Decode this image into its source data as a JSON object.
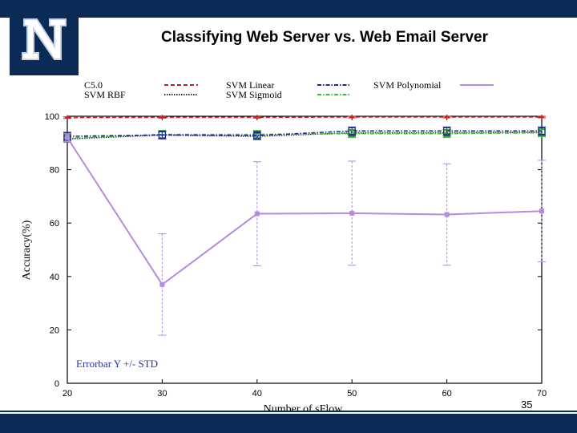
{
  "slide": {
    "title": "Classifying Web Server vs. Web Email Server",
    "page_number": "35"
  },
  "colors": {
    "band": "#0b2b57",
    "c50": "#cc2020",
    "svm_linear": "#1a2a8a",
    "svm_polynomial": "#b58ae0",
    "svm_rbf": "#303030",
    "svm_sigmoid": "#33c433"
  },
  "chart_data": {
    "type": "line",
    "title": "",
    "xlabel": "Number of sFlow",
    "ylabel": "Accuracy(%)",
    "x": [
      20,
      30,
      40,
      50,
      60,
      70
    ],
    "xlim": [
      20,
      70
    ],
    "ylim": [
      0,
      100
    ],
    "xticks": [
      "20",
      "30",
      "40",
      "50",
      "60",
      "70"
    ],
    "yticks": [
      "0",
      "20",
      "40",
      "60",
      "80",
      "100"
    ],
    "grid": false,
    "legend_position": "top",
    "annotation": "Errorbar Y +/- STD",
    "series": [
      {
        "name": "C5.0",
        "values": [
          99.5,
          99.6,
          99.6,
          99.7,
          99.7,
          99.7
        ],
        "std": [
          0.3,
          0.3,
          0.3,
          0.3,
          0.3,
          0.3
        ],
        "color": "#cc2020",
        "dash": "dashed"
      },
      {
        "name": "SVM Linear",
        "values": [
          92.5,
          93.0,
          92.8,
          94.5,
          94.5,
          94.5
        ],
        "std": [
          1.5,
          1.5,
          1.5,
          1.5,
          1.5,
          1.5
        ],
        "color": "#1a2a8a",
        "dash": "dashdot"
      },
      {
        "name": "SVM Polynomial",
        "values": [
          92.0,
          37.0,
          63.5,
          63.7,
          63.2,
          64.5
        ],
        "std": [
          1.5,
          19.0,
          19.5,
          19.5,
          19.0,
          19.0
        ],
        "color": "#b58ae0",
        "dash": "solid"
      },
      {
        "name": "SVM RBF",
        "values": [
          91.5,
          93.0,
          92.5,
          93.8,
          93.8,
          94.0
        ],
        "std": [
          1.2,
          1.2,
          1.2,
          1.2,
          1.2,
          1.2
        ],
        "color": "#303030",
        "dash": "dotted"
      },
      {
        "name": "SVM Sigmoid",
        "values": [
          91.8,
          93.2,
          93.2,
          93.5,
          93.5,
          93.8
        ],
        "std": [
          1.5,
          1.5,
          1.5,
          1.5,
          1.5,
          1.5
        ],
        "color": "#33c433",
        "dash": "dashdot"
      }
    ]
  }
}
